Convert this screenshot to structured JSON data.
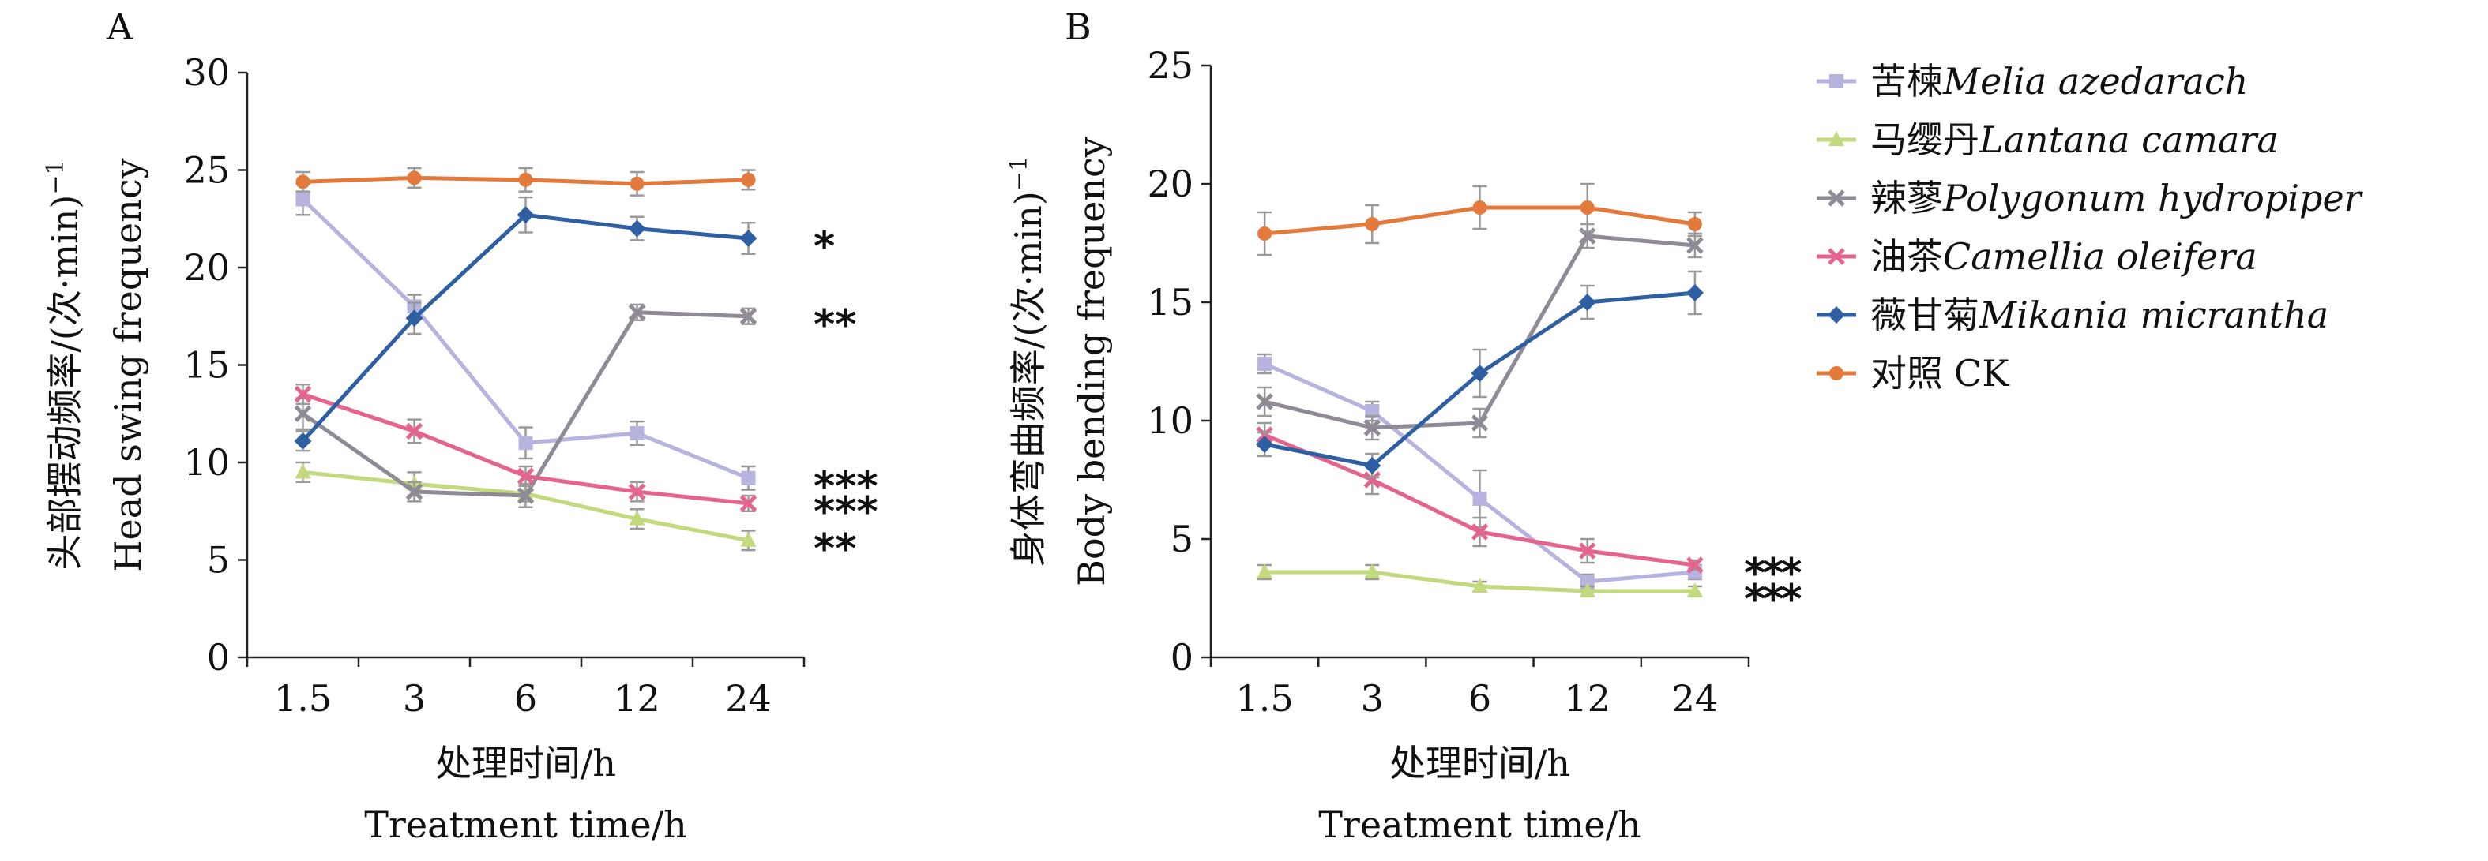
{
  "colors": {
    "melia": "#b6b3df",
    "lantana": "#c3d97d",
    "polygonum": "#8f8a96",
    "camellia": "#e4648e",
    "mikania": "#2f5fa3",
    "ck": "#e3793b",
    "axis": "#222222",
    "errorbar": "#9a9a9a"
  },
  "legend": {
    "items": [
      {
        "zh": "苦楝",
        "en": "Melia azedarach",
        "color_key": "melia"
      },
      {
        "zh": "马缨丹",
        "en": "Lantana camara",
        "color_key": "lantana"
      },
      {
        "zh": "辣蓼",
        "en": "Polygonum hydropiper",
        "color_key": "polygonum"
      },
      {
        "zh": "油茶",
        "en": "Camellia oleifera",
        "color_key": "camellia"
      },
      {
        "zh": "薇甘菊",
        "en": "Mikania micrantha",
        "color_key": "mikania"
      },
      {
        "zh": "对照",
        "en": "CK",
        "color_key": "ck"
      }
    ]
  },
  "chart_data": [
    {
      "type": "line",
      "panel": "A",
      "title": "",
      "ylabel_zh": "头部摆动频率/(次·min)",
      "ylabel_sup": "−1",
      "ylabel_en": "Head swing frequency",
      "xlabel_zh": "处理时间/h",
      "xlabel_en": "Treatment time/h",
      "categories": [
        "1.5",
        "3",
        "6",
        "12",
        "24"
      ],
      "ylim": [
        0,
        30
      ],
      "yticks": [
        0,
        5,
        10,
        15,
        20,
        25,
        30
      ],
      "grid": false,
      "legend": "right",
      "series": [
        {
          "name": "苦楝Melia azedarach",
          "color_key": "melia",
          "marker": "square",
          "values": [
            23.5,
            18.0,
            11.0,
            11.5,
            9.2
          ],
          "errors": [
            0.8,
            0.6,
            0.8,
            0.6,
            0.6
          ]
        },
        {
          "name": "马缨丹Lantana camara",
          "color_key": "lantana",
          "marker": "triangle",
          "values": [
            9.5,
            8.9,
            8.4,
            7.1,
            6.0
          ],
          "errors": [
            0.5,
            0.6,
            0.4,
            0.5,
            0.5
          ]
        },
        {
          "name": "辣蓼Polygonum hydropiper",
          "color_key": "polygonum",
          "marker": "x",
          "values": [
            12.5,
            8.5,
            8.3,
            17.7,
            17.5
          ],
          "errors": [
            0.8,
            0.5,
            0.6,
            0.4,
            0.4
          ]
        },
        {
          "name": "油茶Camellia oleifera",
          "color_key": "camellia",
          "marker": "x",
          "values": [
            13.5,
            11.6,
            9.3,
            8.5,
            7.9
          ],
          "errors": [
            0.5,
            0.6,
            0.5,
            0.5,
            0.4
          ]
        },
        {
          "name": "薇甘菊Mikania micrantha",
          "color_key": "mikania",
          "marker": "diamond",
          "values": [
            11.1,
            17.4,
            22.7,
            22.0,
            21.5
          ],
          "errors": [
            0.5,
            0.8,
            0.9,
            0.6,
            0.8
          ]
        },
        {
          "name": "对照 CK",
          "color_key": "ck",
          "marker": "circle",
          "values": [
            24.4,
            24.6,
            24.5,
            24.3,
            24.5
          ],
          "errors": [
            0.5,
            0.5,
            0.6,
            0.6,
            0.5
          ]
        }
      ],
      "significance": [
        {
          "text": "*",
          "y": 21.5
        },
        {
          "text": "**",
          "y": 17.5
        },
        {
          "text": "***",
          "y": 9.2
        },
        {
          "text": "***",
          "y": 7.9
        },
        {
          "text": "**",
          "y": 6.0
        }
      ]
    },
    {
      "type": "line",
      "panel": "B",
      "title": "",
      "ylabel_zh": "身体弯曲频率/(次·min)",
      "ylabel_sup": "−1",
      "ylabel_en": "Body bending frequency",
      "xlabel_zh": "处理时间/h",
      "xlabel_en": "Treatment time/h",
      "categories": [
        "1.5",
        "3",
        "6",
        "12",
        "24"
      ],
      "ylim": [
        0,
        25
      ],
      "yticks": [
        0,
        5,
        10,
        15,
        20,
        25
      ],
      "grid": false,
      "legend": "right",
      "series": [
        {
          "name": "苦楝Melia azedarach",
          "color_key": "melia",
          "marker": "square",
          "values": [
            12.4,
            10.4,
            6.7,
            3.2,
            3.6
          ],
          "errors": [
            0.4,
            0.4,
            1.2,
            0.3,
            0.3
          ]
        },
        {
          "name": "马缨丹Lantana camara",
          "color_key": "lantana",
          "marker": "triangle",
          "values": [
            3.6,
            3.6,
            3.0,
            2.8,
            2.8
          ],
          "errors": [
            0.3,
            0.3,
            0.2,
            0.2,
            0.2
          ]
        },
        {
          "name": "辣蓼Polygonum hydropiper",
          "color_key": "polygonum",
          "marker": "x",
          "values": [
            10.8,
            9.7,
            9.9,
            17.8,
            17.4
          ],
          "errors": [
            0.6,
            0.5,
            0.6,
            0.5,
            0.5
          ]
        },
        {
          "name": "油茶Camellia oleifera",
          "color_key": "camellia",
          "marker": "x",
          "values": [
            9.4,
            7.5,
            5.3,
            4.5,
            3.9
          ],
          "errors": [
            0.5,
            0.6,
            0.6,
            0.5,
            0.2
          ]
        },
        {
          "name": "薇甘菊Mikania micrantha",
          "color_key": "mikania",
          "marker": "diamond",
          "values": [
            9.0,
            8.1,
            12.0,
            15.0,
            15.4
          ],
          "errors": [
            0.5,
            0.5,
            1.0,
            0.7,
            0.9
          ]
        },
        {
          "name": "对照 CK",
          "color_key": "ck",
          "marker": "circle",
          "values": [
            17.9,
            18.3,
            19.0,
            19.0,
            18.3
          ],
          "errors": [
            0.9,
            0.8,
            0.9,
            1.0,
            0.5
          ]
        }
      ],
      "significance": [
        {
          "text": "***",
          "y": 3.9
        },
        {
          "text": "***",
          "y": 2.8
        }
      ]
    }
  ]
}
